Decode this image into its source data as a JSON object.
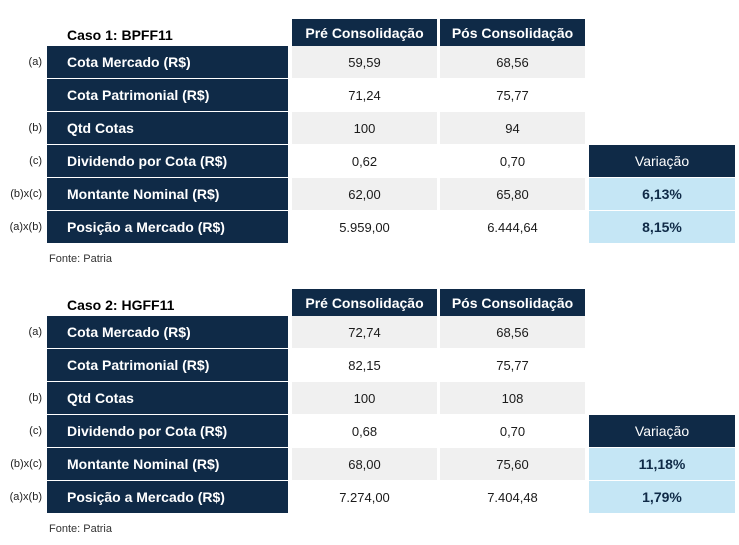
{
  "cases": [
    {
      "title": "Caso 1: BPFF11",
      "col_pre": "Pré Consolidação",
      "col_pos": "Pós Consolidação",
      "rows": [
        {
          "ref": "(a)",
          "label": "Cota Mercado (R$)",
          "pre": "59,59",
          "pos": "68,56"
        },
        {
          "ref": "",
          "label": "Cota Patrimonial (R$)",
          "pre": "71,24",
          "pos": "75,77"
        },
        {
          "ref": "(b)",
          "label": "Qtd Cotas",
          "pre": "100",
          "pos": "94"
        },
        {
          "ref": "(c)",
          "label": "Dividendo por Cota (R$)",
          "pre": "0,62",
          "pos": "0,70"
        },
        {
          "ref": "(b)x(c)",
          "label": "Montante Nominal (R$)",
          "pre": "62,00",
          "pos": "65,80"
        },
        {
          "ref": "(a)x(b)",
          "label": "Posição a Mercado (R$)",
          "pre": "5.959,00",
          "pos": "6.444,64"
        }
      ],
      "variation_header": "Variação",
      "variation": [
        "6,13%",
        "8,15%"
      ],
      "source": "Fonte: Patria"
    },
    {
      "title": "Caso 2: HGFF11",
      "col_pre": "Pré Consolidação",
      "col_pos": "Pós Consolidação",
      "rows": [
        {
          "ref": "(a)",
          "label": "Cota Mercado (R$)",
          "pre": "72,74",
          "pos": "68,56"
        },
        {
          "ref": "",
          "label": "Cota Patrimonial (R$)",
          "pre": "82,15",
          "pos": "75,77"
        },
        {
          "ref": "(b)",
          "label": "Qtd Cotas",
          "pre": "100",
          "pos": "108"
        },
        {
          "ref": "(c)",
          "label": "Dividendo por Cota (R$)",
          "pre": "0,68",
          "pos": "0,70"
        },
        {
          "ref": "(b)x(c)",
          "label": "Montante Nominal (R$)",
          "pre": "68,00",
          "pos": "75,60"
        },
        {
          "ref": "(a)x(b)",
          "label": "Posição a Mercado (R$)",
          "pre": "7.274,00",
          "pos": "7.404,48"
        }
      ],
      "variation_header": "Variação",
      "variation": [
        "11,18%",
        "1,79%"
      ],
      "source": "Fonte: Patria"
    }
  ]
}
